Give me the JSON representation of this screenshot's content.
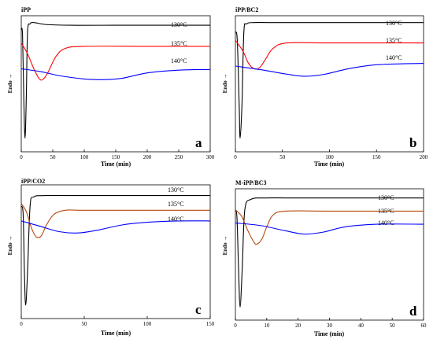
{
  "figure": {
    "y_axis_label": "Endo",
    "x_axis_label": "Time (min)",
    "temperature_labels": [
      "130°C",
      "135°C",
      "140°C"
    ]
  },
  "chart_data": [
    {
      "type": "line",
      "panel_letter": "a",
      "title": "iPP",
      "xlabel": "Time (min)",
      "ylabel": "Endo",
      "xlim": [
        0,
        300
      ],
      "xticks": [
        0,
        50,
        100,
        150,
        200,
        250,
        300
      ],
      "ylim": [
        0,
        100
      ],
      "y_tick_labels": false,
      "series": [
        {
          "name": "130°C",
          "color": "#000000",
          "points": [
            [
              0,
              90
            ],
            [
              2,
              86
            ],
            [
              4,
              40
            ],
            [
              6,
              10
            ],
            [
              8,
              40
            ],
            [
              10,
              88
            ],
            [
              14,
              94
            ],
            [
              20,
              95
            ],
            [
              40,
              93.5
            ],
            [
              80,
              93
            ],
            [
              150,
              93
            ],
            [
              300,
              93
            ]
          ]
        },
        {
          "name": "135°C",
          "color": "#ff0000",
          "points": [
            [
              0,
              80
            ],
            [
              10,
              72
            ],
            [
              20,
              61
            ],
            [
              28,
              54
            ],
            [
              34,
              53
            ],
            [
              42,
              58
            ],
            [
              55,
              70
            ],
            [
              70,
              76
            ],
            [
              100,
              77.5
            ],
            [
              200,
              77.5
            ],
            [
              300,
              77.5
            ]
          ]
        },
        {
          "name": "140°C",
          "color": "#0000ff",
          "points": [
            [
              0,
              61
            ],
            [
              30,
              59
            ],
            [
              60,
              56
            ],
            [
              100,
              53.5
            ],
            [
              130,
              53
            ],
            [
              160,
              54
            ],
            [
              200,
              58
            ],
            [
              250,
              60
            ],
            [
              300,
              60.5
            ]
          ]
        }
      ]
    },
    {
      "type": "line",
      "panel_letter": "b",
      "title": "iPP/BC2",
      "xlabel": "Time (min)",
      "ylabel": "Endo",
      "xlim": [
        0,
        200
      ],
      "xticks": [
        0,
        50,
        100,
        150,
        200
      ],
      "ylim": [
        0,
        100
      ],
      "y_tick_labels": false,
      "series": [
        {
          "name": "130°C",
          "color": "#000000",
          "points": [
            [
              0,
              88
            ],
            [
              2,
              82
            ],
            [
              4,
              35
            ],
            [
              5,
              10
            ],
            [
              7,
              35
            ],
            [
              9,
              88
            ],
            [
              12,
              94
            ],
            [
              20,
              95
            ],
            [
              40,
              95
            ],
            [
              100,
              95
            ],
            [
              200,
              95
            ]
          ]
        },
        {
          "name": "135°C",
          "color": "#ff0000",
          "points": [
            [
              0,
              82
            ],
            [
              8,
              74
            ],
            [
              14,
              65
            ],
            [
              20,
              61
            ],
            [
              26,
              62
            ],
            [
              32,
              68
            ],
            [
              40,
              76
            ],
            [
              55,
              80
            ],
            [
              100,
              80
            ],
            [
              200,
              80
            ]
          ]
        },
        {
          "name": "140°C",
          "color": "#0000ff",
          "points": [
            [
              0,
              63
            ],
            [
              30,
              60
            ],
            [
              55,
              57
            ],
            [
              75,
              55.5
            ],
            [
              95,
              57
            ],
            [
              120,
              61
            ],
            [
              150,
              64
            ],
            [
              200,
              65
            ]
          ]
        }
      ]
    },
    {
      "type": "line",
      "panel_letter": "c",
      "title": "iPP/CO2",
      "xlabel": "Time (min)",
      "ylabel": "Endo",
      "xlim": [
        0,
        150
      ],
      "xticks": [
        0,
        50,
        100,
        150
      ],
      "ylim": [
        0,
        100
      ],
      "y_tick_labels": false,
      "series": [
        {
          "name": "130°C",
          "color": "#000000",
          "points": [
            [
              0,
              84
            ],
            [
              1.5,
              78
            ],
            [
              2.5,
              35
            ],
            [
              3.5,
              10
            ],
            [
              5,
              35
            ],
            [
              7,
              84
            ],
            [
              10,
              91
            ],
            [
              20,
              92
            ],
            [
              50,
              92
            ],
            [
              100,
              92
            ],
            [
              150,
              92
            ]
          ]
        },
        {
          "name": "135°C",
          "color": "#b8480a",
          "points": [
            [
              0,
              86
            ],
            [
              4,
              80
            ],
            [
              8,
              68
            ],
            [
              12,
              61
            ],
            [
              16,
              62
            ],
            [
              20,
              70
            ],
            [
              26,
              78
            ],
            [
              35,
              81
            ],
            [
              50,
              81
            ],
            [
              100,
              81
            ],
            [
              150,
              81
            ]
          ]
        },
        {
          "name": "140°C",
          "color": "#0000ff",
          "points": [
            [
              0,
              73
            ],
            [
              15,
              69
            ],
            [
              30,
              65
            ],
            [
              45,
              64
            ],
            [
              60,
              66
            ],
            [
              80,
              70
            ],
            [
              100,
              72
            ],
            [
              125,
              73
            ],
            [
              150,
              73
            ]
          ]
        }
      ]
    },
    {
      "type": "line",
      "panel_letter": "d",
      "title": "M-iPP/BC3",
      "xlabel": "Time (min)",
      "ylabel": "Endo",
      "xlim": [
        0,
        60
      ],
      "xticks": [
        0,
        10,
        20,
        30,
        40,
        50,
        60
      ],
      "ylim": [
        0,
        100
      ],
      "y_tick_labels": false,
      "series": [
        {
          "name": "130°C",
          "color": "#000000",
          "points": [
            [
              0,
              84
            ],
            [
              0.5,
              78
            ],
            [
              1,
              40
            ],
            [
              1.5,
              10
            ],
            [
              2.2,
              40
            ],
            [
              3,
              84
            ],
            [
              5,
              92
            ],
            [
              10,
              93
            ],
            [
              20,
              93
            ],
            [
              60,
              93
            ]
          ]
        },
        {
          "name": "135°C",
          "color": "#b8480a",
          "points": [
            [
              0,
              84
            ],
            [
              2,
              79
            ],
            [
              4,
              68
            ],
            [
              6,
              59
            ],
            [
              7,
              58
            ],
            [
              8.5,
              62
            ],
            [
              10,
              71
            ],
            [
              12,
              80
            ],
            [
              16,
              83
            ],
            [
              30,
              83
            ],
            [
              60,
              83
            ]
          ]
        },
        {
          "name": "140°C",
          "color": "#0000ff",
          "points": [
            [
              0,
              74
            ],
            [
              8,
              72
            ],
            [
              16,
              68
            ],
            [
              22,
              65.5
            ],
            [
              28,
              67
            ],
            [
              35,
              71
            ],
            [
              45,
              73
            ],
            [
              60,
              73
            ]
          ]
        }
      ]
    }
  ]
}
